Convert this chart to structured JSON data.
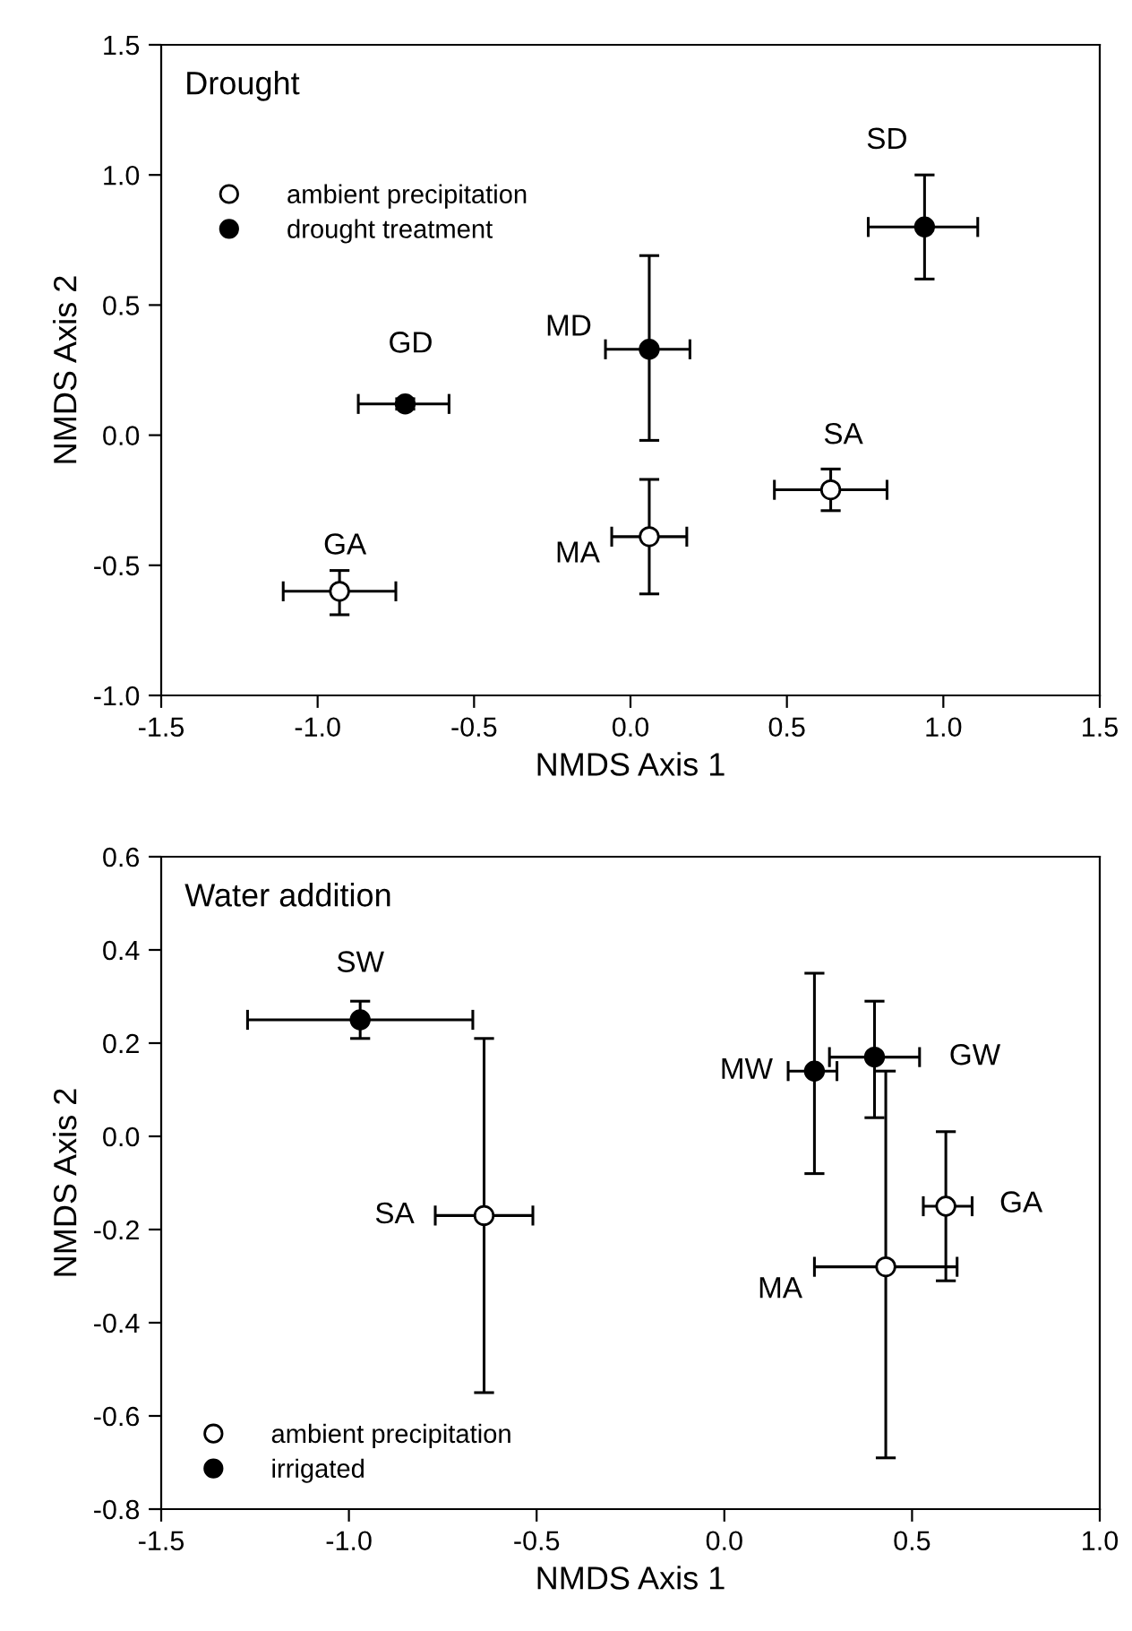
{
  "chart_data": [
    {
      "type": "scatter",
      "title": "Drought",
      "xlabel": "NMDS Axis 1",
      "ylabel": "NMDS Axis 2",
      "xlim": [
        -1.5,
        1.5
      ],
      "xticks": [
        {
          "value": -1.5,
          "label": "-1.5"
        },
        {
          "value": -1.0,
          "label": "-1.0"
        },
        {
          "value": -0.5,
          "label": "-0.5"
        },
        {
          "value": 0.0,
          "label": "0.0"
        },
        {
          "value": 0.5,
          "label": "0.5"
        },
        {
          "value": 1.0,
          "label": "1.0"
        },
        {
          "value": 1.5,
          "label": "1.5"
        }
      ],
      "ylim": [
        -1.0,
        1.5
      ],
      "yticks": [
        {
          "value": -1.0,
          "label": "-1.0"
        },
        {
          "value": -0.5,
          "label": "-0.5"
        },
        {
          "value": 0.0,
          "label": "0.0"
        },
        {
          "value": 0.5,
          "label": "0.5"
        },
        {
          "value": 1.0,
          "label": "1.0"
        },
        {
          "value": 1.5,
          "label": "1.5"
        }
      ],
      "marker": "circle",
      "legend": "top left",
      "grid": false,
      "series": [
        {
          "name": "ambient precipitation",
          "color": "#000000",
          "x": [
            -0.93,
            0.06,
            0.64
          ],
          "values": [
            -0.6,
            -0.39,
            -0.21
          ],
          "xerrors": [
            [
              -1.11,
              -0.75
            ],
            [
              -0.06,
              0.18
            ],
            [
              0.46,
              0.82
            ]
          ],
          "errors": [
            [
              -0.69,
              -0.52
            ],
            [
              -0.61,
              -0.17
            ],
            [
              -0.29,
              -0.13
            ]
          ]
        },
        {
          "name": "drought treatment",
          "color": "#000000",
          "x": [
            -0.72,
            0.06,
            0.94
          ],
          "values": [
            0.12,
            0.33,
            0.8
          ],
          "xerrors": [
            [
              -0.87,
              -0.58
            ],
            [
              -0.08,
              0.19
            ],
            [
              0.76,
              1.11
            ]
          ],
          "errors": [
            [
              0.1,
              0.14
            ],
            [
              -0.02,
              0.69
            ],
            [
              0.6,
              1.0
            ]
          ]
        }
      ],
      "annotations": [
        {
          "text": "GA",
          "x": -0.93,
          "y": -0.6
        },
        {
          "text": "GD",
          "x": -0.72,
          "y": 0.12
        },
        {
          "text": "MD",
          "x": 0.06,
          "y": 0.33
        },
        {
          "text": "MA",
          "x": 0.06,
          "y": -0.39
        },
        {
          "text": "SA",
          "x": 0.64,
          "y": -0.21
        },
        {
          "text": "SD",
          "x": 0.94,
          "y": 0.8
        }
      ]
    },
    {
      "type": "scatter",
      "title": "Water addition",
      "xlabel": "NMDS Axis 1",
      "ylabel": "NMDS Axis 2",
      "xlim": [
        -1.5,
        1.0
      ],
      "xticks": [
        {
          "value": -1.5,
          "label": "-1.5"
        },
        {
          "value": -1.0,
          "label": "-1.0"
        },
        {
          "value": -0.5,
          "label": "-0.5"
        },
        {
          "value": 0.0,
          "label": "0.0"
        },
        {
          "value": 0.5,
          "label": "0.5"
        },
        {
          "value": 1.0,
          "label": "1.0"
        }
      ],
      "ylim": [
        -0.8,
        0.6
      ],
      "yticks": [
        {
          "value": -0.8,
          "label": "-0.8"
        },
        {
          "value": -0.6,
          "label": "-0.6"
        },
        {
          "value": -0.4,
          "label": "-0.4"
        },
        {
          "value": -0.2,
          "label": "-0.2"
        },
        {
          "value": 0.0,
          "label": "0.0"
        },
        {
          "value": 0.2,
          "label": "0.2"
        },
        {
          "value": 0.4,
          "label": "0.4"
        },
        {
          "value": 0.6,
          "label": "0.6"
        }
      ],
      "marker": "circle",
      "legend": "bottom left",
      "grid": false,
      "series": [
        {
          "name": "ambient precipitation",
          "color": "#000000",
          "x": [
            -0.64,
            0.59,
            0.43
          ],
          "values": [
            -0.17,
            -0.15,
            -0.28
          ],
          "xerrors": [
            [
              -0.77,
              -0.51
            ],
            [
              0.53,
              0.66
            ],
            [
              0.24,
              0.62
            ]
          ],
          "errors": [
            [
              -0.55,
              0.21
            ],
            [
              -0.31,
              0.01
            ],
            [
              -0.69,
              0.14
            ]
          ]
        },
        {
          "name": "irrigated",
          "color": "#000000",
          "x": [
            -0.97,
            0.24,
            0.4
          ],
          "values": [
            0.25,
            0.14,
            0.17
          ],
          "xerrors": [
            [
              -1.27,
              -0.67
            ],
            [
              0.17,
              0.3
            ],
            [
              0.28,
              0.52
            ]
          ],
          "errors": [
            [
              0.21,
              0.29
            ],
            [
              -0.08,
              0.35
            ],
            [
              0.04,
              0.29
            ]
          ]
        }
      ],
      "annotations": [
        {
          "text": "SW",
          "x": -0.97,
          "y": 0.25
        },
        {
          "text": "SA",
          "x": -0.64,
          "y": -0.17
        },
        {
          "text": "MW",
          "x": 0.24,
          "y": 0.14
        },
        {
          "text": "GW",
          "x": 0.4,
          "y": 0.17
        },
        {
          "text": "GA",
          "x": 0.59,
          "y": -0.15
        },
        {
          "text": "MA",
          "x": 0.43,
          "y": -0.28
        }
      ]
    }
  ]
}
